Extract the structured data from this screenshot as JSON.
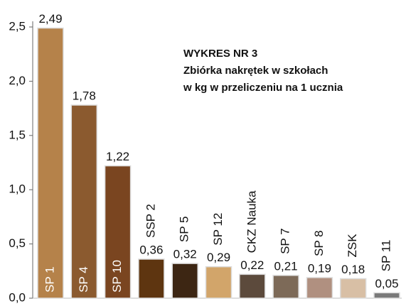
{
  "chart_data": {
    "type": "bar",
    "title_lines": [
      "WYKRES NR 3",
      "Zbiórka nakrętek w szkołach",
      "w kg w przeliczeniu na 1 ucznia"
    ],
    "categories": [
      "SP 1",
      "SP 4",
      "SP 10",
      "SSP 2",
      "SP 5",
      "SP 12",
      "CKZ Nauka",
      "SP 7",
      "SP 8",
      "ZSK",
      "SP 11"
    ],
    "values": [
      2.49,
      1.78,
      1.22,
      0.36,
      0.32,
      0.29,
      0.22,
      0.21,
      0.19,
      0.18,
      0.05
    ],
    "value_labels": [
      "2,49",
      "1,78",
      "1,22",
      "0,36",
      "0,32",
      "0,29",
      "0,22",
      "0,21",
      "0,19",
      "0,18",
      "0,05"
    ],
    "colors": [
      "#b5824a",
      "#8b5a2f",
      "#7a4520",
      "#5e3510",
      "#3d2613",
      "#d2a56a",
      "#5c4a3c",
      "#7d6a58",
      "#b09080",
      "#d8bfa5",
      "#7a7a7a"
    ],
    "ylim": [
      0,
      2.5
    ],
    "yticks": [
      {
        "value": 0,
        "label": "0,0"
      },
      {
        "value": 0.5,
        "label": "0,5"
      },
      {
        "value": 1,
        "label": "1,0"
      },
      {
        "value": 1.5,
        "label": "1,5"
      },
      {
        "value": 2,
        "label": "2,0"
      },
      {
        "value": 2.5,
        "label": "2,5"
      }
    ]
  }
}
